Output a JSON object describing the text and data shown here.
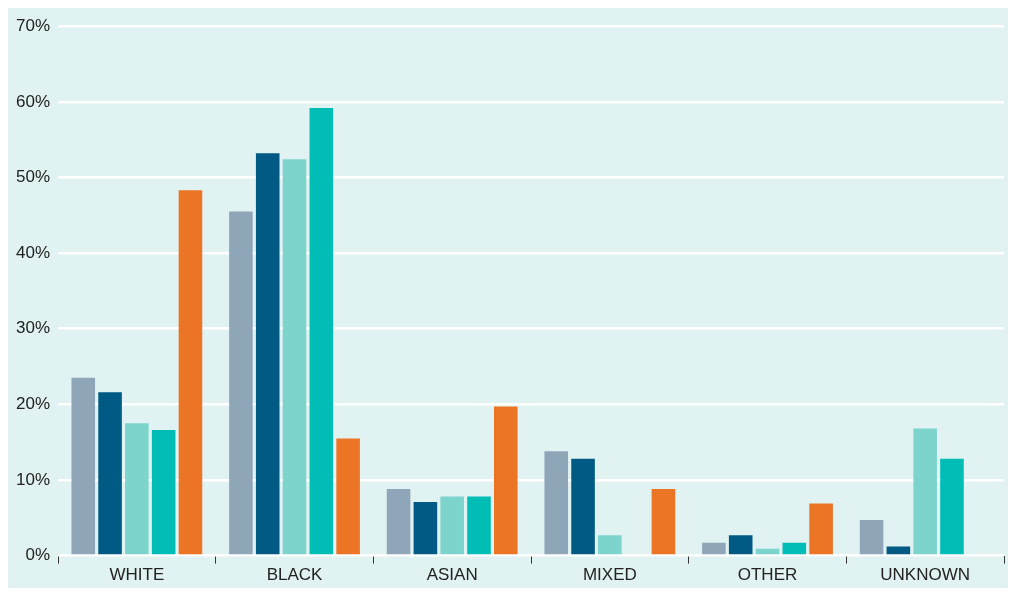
{
  "chart_data": {
    "type": "bar",
    "categories": [
      "WHITE",
      "BLACK",
      "ASIAN",
      "MIXED",
      "OTHER",
      "UNKNOWN"
    ],
    "series": [
      {
        "color": "#8fa6b9",
        "values": [
          23.5,
          45.5,
          8.8,
          13.8,
          1.7,
          4.7
        ]
      },
      {
        "color": "#005a83",
        "values": [
          21.6,
          53.2,
          7.1,
          12.8,
          2.7,
          1.2
        ]
      },
      {
        "color": "#7dd4cd",
        "values": [
          17.5,
          52.4,
          7.8,
          2.7,
          0.9,
          16.8
        ]
      },
      {
        "color": "#00bdb6",
        "values": [
          16.6,
          59.2,
          7.8,
          null,
          1.7,
          12.8
        ]
      },
      {
        "color": "#ec7425",
        "values": [
          48.3,
          15.5,
          19.7,
          8.8,
          6.9,
          null
        ]
      }
    ],
    "ylim": [
      0,
      70
    ],
    "yticks": [
      {
        "value": 0,
        "label": "0%"
      },
      {
        "value": 10,
        "label": "10%"
      },
      {
        "value": 20,
        "label": "20%"
      },
      {
        "value": 30,
        "label": "30%"
      },
      {
        "value": 40,
        "label": "40%"
      },
      {
        "value": 50,
        "label": "50%"
      },
      {
        "value": 60,
        "label": "60%"
      },
      {
        "value": 70,
        "label": "70%"
      }
    ],
    "grid": "y",
    "legend": false
  }
}
